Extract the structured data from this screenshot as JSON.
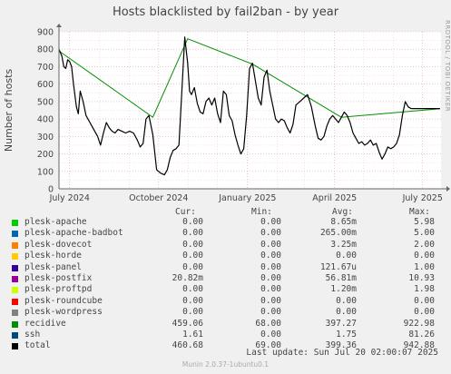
{
  "title": "Hosts blacklisted by fail2ban - by year",
  "side_credit": "RRDTOOL / TOBI OETIKER",
  "footer": "Munin 2.0.37-1ubuntu0.1",
  "last_update": "Last update: Sun Jul 20 02:00:07 2025",
  "legend_headers": {
    "cur": "Cur:",
    "min": "Min:",
    "avg": "Avg:",
    "max": "Max:"
  },
  "legend": [
    {
      "name": "plesk-apache",
      "color": "#00cc00",
      "cur": "0.00",
      "min": "0.00",
      "avg": "8.65m",
      "max": "5.98"
    },
    {
      "name": "plesk-apache-badbot",
      "color": "#0066b3",
      "cur": "0.00",
      "min": "0.00",
      "avg": "265.00m",
      "max": "5.00"
    },
    {
      "name": "plesk-dovecot",
      "color": "#ff8000",
      "cur": "0.00",
      "min": "0.00",
      "avg": "3.25m",
      "max": "2.00"
    },
    {
      "name": "plesk-horde",
      "color": "#ffcc00",
      "cur": "0.00",
      "min": "0.00",
      "avg": "0.00",
      "max": "0.00"
    },
    {
      "name": "plesk-panel",
      "color": "#330099",
      "cur": "0.00",
      "min": "0.00",
      "avg": "121.67u",
      "max": "1.00"
    },
    {
      "name": "plesk-postfix",
      "color": "#990099",
      "cur": "20.82m",
      "min": "0.00",
      "avg": "56.81m",
      "max": "10.93"
    },
    {
      "name": "plesk-proftpd",
      "color": "#ccff00",
      "cur": "0.00",
      "min": "0.00",
      "avg": "1.20m",
      "max": "1.98"
    },
    {
      "name": "plesk-roundcube",
      "color": "#ff0000",
      "cur": "0.00",
      "min": "0.00",
      "avg": "0.00",
      "max": "0.00"
    },
    {
      "name": "plesk-wordpress",
      "color": "#808080",
      "cur": "0.00",
      "min": "0.00",
      "avg": "0.00",
      "max": "0.00"
    },
    {
      "name": "recidive",
      "color": "#008f00",
      "cur": "459.06",
      "min": "68.00",
      "avg": "397.27",
      "max": "922.98"
    },
    {
      "name": "ssh",
      "color": "#00487d",
      "cur": "1.61",
      "min": "0.00",
      "avg": "1.75",
      "max": "81.26"
    },
    {
      "name": "total",
      "color": "#000000",
      "cur": "460.68",
      "min": "69.00",
      "avg": "399.36",
      "max": "942.88"
    }
  ],
  "chart_data": {
    "type": "line",
    "title": "Hosts blacklisted by fail2ban - by year",
    "ylabel": "Number of hosts",
    "ylim": [
      0,
      900
    ],
    "yticks": [
      0,
      100,
      200,
      300,
      400,
      500,
      600,
      700,
      800,
      900
    ],
    "xlim": [
      "2024-06-20",
      "2025-07-20"
    ],
    "xticks": [
      {
        "date": "2024-07-01",
        "label": "July 2024"
      },
      {
        "date": "2024-10-01",
        "label": "October 2024"
      },
      {
        "date": "2025-01-01",
        "label": "January 2025"
      },
      {
        "date": "2025-04-01",
        "label": "April 2025"
      },
      {
        "date": "2025-07-01",
        "label": "July 2025"
      }
    ],
    "grid": true,
    "series": [
      {
        "name": "total",
        "color": "#000000",
        "x": [
          "2024-06-20",
          "2024-06-23",
          "2024-06-25",
          "2024-06-27",
          "2024-06-29",
          "2024-07-01",
          "2024-07-03",
          "2024-07-05",
          "2024-07-08",
          "2024-07-10",
          "2024-07-12",
          "2024-07-15",
          "2024-07-18",
          "2024-07-21",
          "2024-07-24",
          "2024-07-27",
          "2024-07-30",
          "2024-08-02",
          "2024-08-05",
          "2024-08-08",
          "2024-08-11",
          "2024-08-14",
          "2024-08-17",
          "2024-08-20",
          "2024-08-24",
          "2024-08-28",
          "2024-09-01",
          "2024-09-05",
          "2024-09-09",
          "2024-09-12",
          "2024-09-15",
          "2024-09-18",
          "2024-09-21",
          "2024-09-25",
          "2024-09-29",
          "2024-10-03",
          "2024-10-07",
          "2024-10-10",
          "2024-10-13",
          "2024-10-16",
          "2024-10-19",
          "2024-10-22",
          "2024-10-25",
          "2024-10-28",
          "2024-10-31",
          "2024-11-02",
          "2024-11-04",
          "2024-11-07",
          "2024-11-10",
          "2024-11-13",
          "2024-11-16",
          "2024-11-19",
          "2024-11-22",
          "2024-11-25",
          "2024-11-28",
          "2024-12-01",
          "2024-12-04",
          "2024-12-07",
          "2024-12-10",
          "2024-12-13",
          "2024-12-16",
          "2024-12-19",
          "2024-12-22",
          "2024-12-25",
          "2024-12-28",
          "2024-12-31",
          "2025-01-03",
          "2025-01-06",
          "2025-01-09",
          "2025-01-12",
          "2025-01-15",
          "2025-01-18",
          "2025-01-21",
          "2025-01-24",
          "2025-01-27",
          "2025-01-30",
          "2025-02-02",
          "2025-02-05",
          "2025-02-08",
          "2025-02-11",
          "2025-02-14",
          "2025-02-17",
          "2025-02-20",
          "2025-02-24",
          "2025-02-28",
          "2025-03-04",
          "2025-03-08",
          "2025-03-12",
          "2025-03-15",
          "2025-03-18",
          "2025-03-21",
          "2025-03-24",
          "2025-03-27",
          "2025-03-30",
          "2025-04-02",
          "2025-04-05",
          "2025-04-08",
          "2025-04-11",
          "2025-04-14",
          "2025-04-17",
          "2025-04-20",
          "2025-04-23",
          "2025-04-26",
          "2025-04-29",
          "2025-05-02",
          "2025-05-05",
          "2025-05-08",
          "2025-05-11",
          "2025-05-14",
          "2025-05-17",
          "2025-05-20",
          "2025-05-23",
          "2025-05-26",
          "2025-05-29",
          "2025-06-01",
          "2025-06-04",
          "2025-06-07",
          "2025-06-10",
          "2025-06-13",
          "2025-06-16",
          "2025-06-19",
          "2025-06-22",
          "2025-06-25",
          "2025-06-28",
          "2025-07-01",
          "2025-07-04",
          "2025-07-07",
          "2025-07-10",
          "2025-07-13",
          "2025-07-16",
          "2025-07-19"
        ],
        "values": [
          800,
          760,
          700,
          690,
          740,
          730,
          700,
          600,
          470,
          430,
          560,
          500,
          420,
          390,
          360,
          330,
          300,
          250,
          320,
          380,
          350,
          330,
          320,
          340,
          330,
          320,
          330,
          320,
          280,
          240,
          260,
          400,
          420,
          310,
          110,
          90,
          80,
          110,
          180,
          220,
          230,
          250,
          560,
          870,
          720,
          560,
          540,
          580,
          490,
          440,
          430,
          500,
          520,
          480,
          520,
          430,
          380,
          560,
          540,
          420,
          390,
          310,
          250,
          200,
          230,
          420,
          690,
          720,
          620,
          520,
          480,
          640,
          680,
          560,
          480,
          400,
          380,
          400,
          390,
          350,
          320,
          370,
          480,
          500,
          520,
          540,
          470,
          360,
          290,
          280,
          300,
          360,
          400,
          420,
          400,
          380,
          410,
          440,
          420,
          380,
          320,
          290,
          260,
          270,
          250,
          260,
          280,
          250,
          260,
          210,
          170,
          200,
          240,
          230,
          240,
          260,
          310,
          420,
          500,
          470,
          460,
          460,
          460,
          460,
          460,
          460,
          460,
          460,
          460,
          460,
          460
        ]
      },
      {
        "name": "recidive",
        "color": "#008f00",
        "x": [
          "2024-06-20",
          "2024-09-25",
          "2024-10-31",
          "2025-01-06",
          "2025-04-08",
          "2025-07-19"
        ],
        "values": [
          790,
          410,
          860,
          715,
          410,
          459
        ]
      }
    ]
  }
}
